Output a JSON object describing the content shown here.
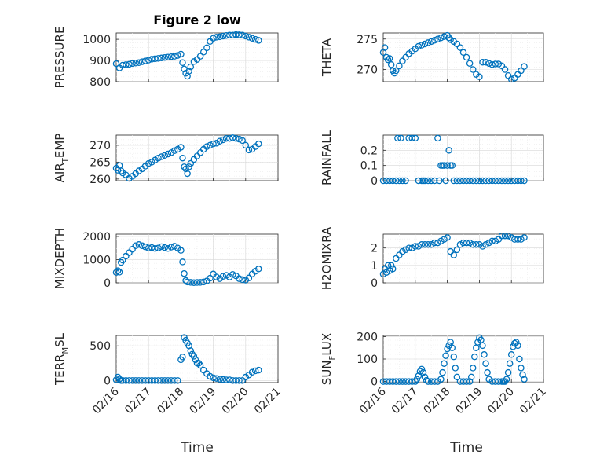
{
  "figure": {
    "title": "Figure 2 low",
    "xlabel": "Time"
  },
  "colors": {
    "marker": "#0072BD",
    "axes": "#262626"
  },
  "chart_data": [
    {
      "type": "scatter",
      "marker": "circle",
      "xlabel": "",
      "ylabel": "PRESSURE",
      "xlim": [
        0,
        5
      ],
      "ylim": [
        800,
        1030
      ],
      "yticks": [
        800,
        900,
        1000
      ],
      "xtick_labels": [],
      "grid": true,
      "minor_grid": true,
      "title": "Figure 2 low",
      "x": [
        0.0,
        0.1,
        0.2,
        0.3,
        0.4,
        0.5,
        0.6,
        0.7,
        0.8,
        0.9,
        1.0,
        1.1,
        1.2,
        1.3,
        1.4,
        1.5,
        1.6,
        1.7,
        1.8,
        1.9,
        2.0,
        2.05,
        2.1,
        2.15,
        2.2,
        2.25,
        2.3,
        2.4,
        2.5,
        2.6,
        2.7,
        2.8,
        2.9,
        3.0,
        3.1,
        3.2,
        3.3,
        3.4,
        3.5,
        3.6,
        3.7,
        3.8,
        3.9,
        4.0,
        4.1,
        4.2,
        4.3,
        4.4
      ],
      "y": [
        885,
        865,
        878,
        880,
        882,
        886,
        888,
        890,
        894,
        898,
        902,
        906,
        908,
        910,
        912,
        914,
        916,
        918,
        920,
        924,
        930,
        890,
        860,
        840,
        826,
        850,
        870,
        895,
        905,
        920,
        940,
        960,
        990,
        1005,
        1010,
        1012,
        1015,
        1018,
        1020,
        1020,
        1022,
        1021,
        1020,
        1015,
        1010,
        1005,
        1000,
        995
      ]
    },
    {
      "type": "scatter",
      "marker": "circle",
      "xlabel": "",
      "ylabel": "THETA",
      "xlim": [
        0,
        5
      ],
      "ylim": [
        268,
        276
      ],
      "yticks": [
        270,
        275
      ],
      "xtick_labels": [],
      "grid": true,
      "minor_grid": true,
      "x": [
        0.0,
        0.05,
        0.1,
        0.15,
        0.2,
        0.25,
        0.3,
        0.35,
        0.4,
        0.5,
        0.6,
        0.7,
        0.8,
        0.9,
        1.0,
        1.1,
        1.2,
        1.3,
        1.4,
        1.5,
        1.6,
        1.7,
        1.8,
        1.9,
        2.0,
        2.05,
        2.1,
        2.2,
        2.3,
        2.4,
        2.5,
        2.6,
        2.7,
        2.8,
        2.9,
        3.0,
        3.1,
        3.2,
        3.3,
        3.4,
        3.5,
        3.6,
        3.7,
        3.8,
        3.9,
        4.0,
        4.1,
        4.2,
        4.3,
        4.4
      ],
      "y": [
        272.8,
        273.6,
        272.0,
        271.6,
        271.8,
        270.8,
        269.8,
        269.4,
        269.8,
        270.6,
        271.4,
        272.0,
        272.6,
        273.0,
        273.4,
        273.8,
        274.0,
        274.2,
        274.4,
        274.6,
        274.8,
        275.0,
        275.2,
        275.4,
        275.6,
        275.2,
        274.9,
        274.6,
        274.2,
        273.6,
        272.8,
        272.0,
        271.0,
        270.0,
        269.2,
        268.8,
        271.2,
        271.2,
        271.0,
        270.8,
        270.9,
        270.9,
        270.6,
        270.0,
        269.0,
        268.4,
        268.6,
        269.2,
        269.8,
        270.5
      ]
    },
    {
      "type": "scatter",
      "marker": "circle",
      "xlabel": "",
      "ylabel": "AIR_TEMP",
      "xlim": [
        0,
        5
      ],
      "ylim": [
        259.5,
        273
      ],
      "yticks": [
        260,
        265,
        270
      ],
      "xtick_labels": [],
      "grid": true,
      "minor_grid": true,
      "x": [
        0.0,
        0.05,
        0.1,
        0.15,
        0.2,
        0.3,
        0.4,
        0.5,
        0.6,
        0.7,
        0.8,
        0.9,
        1.0,
        1.1,
        1.2,
        1.3,
        1.4,
        1.5,
        1.6,
        1.7,
        1.8,
        1.9,
        2.0,
        2.05,
        2.1,
        2.15,
        2.2,
        2.25,
        2.3,
        2.4,
        2.5,
        2.6,
        2.7,
        2.8,
        2.9,
        3.0,
        3.1,
        3.2,
        3.3,
        3.4,
        3.5,
        3.6,
        3.7,
        3.8,
        3.9,
        4.0,
        4.1,
        4.2,
        4.3,
        4.4
      ],
      "y": [
        263.2,
        262.6,
        264.0,
        262.4,
        261.8,
        261.2,
        260.2,
        260.8,
        261.6,
        262.4,
        263.0,
        263.8,
        264.6,
        265.0,
        265.6,
        266.2,
        266.6,
        267.0,
        267.4,
        267.8,
        268.4,
        268.8,
        269.4,
        266.2,
        263.6,
        263.0,
        261.6,
        263.6,
        264.6,
        265.8,
        266.8,
        267.8,
        268.8,
        269.6,
        270.0,
        270.4,
        270.6,
        271.2,
        271.6,
        272.0,
        272.0,
        272.2,
        272.0,
        271.8,
        271.4,
        270.0,
        268.6,
        268.8,
        269.6,
        270.4
      ]
    },
    {
      "type": "scatter",
      "marker": "circle",
      "xlabel": "",
      "ylabel": "RAINFALL",
      "xlim": [
        0,
        5
      ],
      "ylim": [
        0,
        0.3
      ],
      "yticks": [
        0,
        0.1,
        0.2
      ],
      "xtick_labels": [],
      "grid": true,
      "minor_grid": true,
      "x": [
        0.0,
        0.1,
        0.2,
        0.3,
        0.4,
        0.45,
        0.5,
        0.55,
        0.6,
        0.7,
        0.8,
        0.9,
        1.0,
        1.1,
        1.2,
        1.25,
        1.3,
        1.4,
        1.5,
        1.6,
        1.7,
        1.75,
        1.8,
        1.85,
        1.9,
        1.95,
        2.0,
        2.05,
        2.1,
        2.15,
        2.2,
        2.3,
        2.4,
        2.5,
        2.6,
        2.7,
        2.8,
        2.9,
        3.0,
        3.1,
        3.2,
        3.3,
        3.4,
        3.5,
        3.6,
        3.7,
        3.8,
        3.9,
        4.0,
        4.1,
        4.2,
        4.3,
        4.4
      ],
      "y": [
        0,
        0,
        0,
        0,
        0,
        0.28,
        0,
        0.28,
        0,
        0,
        0.28,
        0.28,
        0.28,
        0,
        0,
        0,
        0,
        0,
        0,
        0,
        0.28,
        0,
        0.1,
        0.1,
        0.1,
        0,
        0.1,
        0.2,
        0.1,
        0.1,
        0,
        0,
        0,
        0,
        0,
        0,
        0,
        0,
        0,
        0,
        0,
        0,
        0,
        0,
        0,
        0,
        0,
        0,
        0,
        0,
        0,
        0,
        0
      ]
    },
    {
      "type": "scatter",
      "marker": "circle",
      "xlabel": "",
      "ylabel": "MIXDEPTH",
      "xlim": [
        0,
        5
      ],
      "ylim": [
        0,
        2100
      ],
      "yticks": [
        0,
        1000,
        2000
      ],
      "xtick_labels": [],
      "grid": true,
      "minor_grid": true,
      "x": [
        0.0,
        0.05,
        0.1,
        0.15,
        0.2,
        0.3,
        0.4,
        0.5,
        0.6,
        0.7,
        0.8,
        0.9,
        1.0,
        1.1,
        1.2,
        1.3,
        1.4,
        1.5,
        1.6,
        1.7,
        1.8,
        1.9,
        2.0,
        2.05,
        2.1,
        2.15,
        2.2,
        2.3,
        2.4,
        2.5,
        2.6,
        2.7,
        2.8,
        2.9,
        3.0,
        3.1,
        3.2,
        3.3,
        3.4,
        3.5,
        3.6,
        3.7,
        3.8,
        3.9,
        4.0,
        4.1,
        4.2,
        4.3,
        4.4
      ],
      "y": [
        450,
        520,
        460,
        880,
        980,
        1150,
        1300,
        1450,
        1600,
        1650,
        1600,
        1550,
        1500,
        1520,
        1480,
        1500,
        1560,
        1520,
        1480,
        1540,
        1580,
        1500,
        1400,
        900,
        400,
        100,
        40,
        20,
        10,
        15,
        20,
        40,
        80,
        200,
        380,
        250,
        180,
        280,
        320,
        250,
        360,
        300,
        180,
        140,
        120,
        210,
        380,
        500,
        600
      ]
    },
    {
      "type": "scatter",
      "marker": "circle",
      "xlabel": "",
      "ylabel": "H2OMIXRA",
      "xlim": [
        0,
        5
      ],
      "ylim": [
        0,
        2.8
      ],
      "yticks": [
        0,
        1,
        2
      ],
      "xtick_labels": [],
      "grid": true,
      "minor_grid": true,
      "x": [
        0.0,
        0.05,
        0.1,
        0.15,
        0.2,
        0.25,
        0.3,
        0.4,
        0.5,
        0.6,
        0.7,
        0.8,
        0.9,
        1.0,
        1.1,
        1.2,
        1.3,
        1.4,
        1.5,
        1.6,
        1.7,
        1.8,
        1.9,
        2.0,
        2.1,
        2.2,
        2.3,
        2.4,
        2.5,
        2.6,
        2.7,
        2.8,
        2.9,
        3.0,
        3.1,
        3.2,
        3.3,
        3.4,
        3.5,
        3.6,
        3.7,
        3.8,
        3.9,
        4.0,
        4.1,
        4.2,
        4.3,
        4.4
      ],
      "y": [
        0.5,
        0.8,
        0.6,
        1.0,
        0.7,
        1.0,
        0.8,
        1.4,
        1.6,
        1.8,
        1.9,
        2.0,
        2.0,
        2.1,
        2.1,
        2.2,
        2.2,
        2.2,
        2.2,
        2.3,
        2.3,
        2.4,
        2.5,
        2.6,
        1.8,
        1.6,
        1.9,
        2.2,
        2.3,
        2.3,
        2.3,
        2.2,
        2.2,
        2.2,
        2.1,
        2.2,
        2.3,
        2.4,
        2.4,
        2.5,
        2.7,
        2.7,
        2.7,
        2.6,
        2.5,
        2.5,
        2.5,
        2.6
      ]
    },
    {
      "type": "scatter",
      "marker": "circle",
      "xlabel": "Time",
      "ylabel": "TERR_MSL",
      "xlim": [
        0,
        5
      ],
      "ylim": [
        -30,
        650
      ],
      "yticks": [
        0,
        500
      ],
      "xtick_values": [
        0,
        1,
        2,
        3,
        4,
        5
      ],
      "xtick_labels": [
        "02/16",
        "02/17",
        "02/18",
        "02/19",
        "02/20",
        "02/21"
      ],
      "grid": true,
      "minor_grid": true,
      "x": [
        0.0,
        0.05,
        0.1,
        0.15,
        0.2,
        0.3,
        0.4,
        0.5,
        0.6,
        0.7,
        0.8,
        0.9,
        1.0,
        1.1,
        1.2,
        1.3,
        1.4,
        1.5,
        1.6,
        1.7,
        1.8,
        1.9,
        2.0,
        2.05,
        2.1,
        2.15,
        2.2,
        2.25,
        2.3,
        2.35,
        2.4,
        2.45,
        2.5,
        2.55,
        2.6,
        2.7,
        2.8,
        2.9,
        3.0,
        3.1,
        3.2,
        3.3,
        3.4,
        3.5,
        3.6,
        3.7,
        3.8,
        3.9,
        4.0,
        4.1,
        4.2,
        4.3,
        4.4
      ],
      "y": [
        10,
        50,
        20,
        0,
        0,
        0,
        0,
        0,
        0,
        0,
        0,
        0,
        0,
        0,
        0,
        0,
        0,
        0,
        0,
        0,
        0,
        0,
        300,
        340,
        620,
        580,
        540,
        500,
        430,
        380,
        350,
        300,
        250,
        250,
        220,
        150,
        100,
        60,
        40,
        30,
        20,
        15,
        10,
        10,
        0,
        0,
        0,
        0,
        50,
        80,
        120,
        140,
        150
      ]
    },
    {
      "type": "scatter",
      "marker": "circle",
      "xlabel": "Time",
      "ylabel": "SUN_FLUX",
      "xlim": [
        0,
        5
      ],
      "ylim": [
        -5,
        205
      ],
      "yticks": [
        0,
        100,
        200
      ],
      "xtick_values": [
        0,
        1,
        2,
        3,
        4,
        5
      ],
      "xtick_labels": [
        "02/16",
        "02/17",
        "02/18",
        "02/19",
        "02/20",
        "02/21"
      ],
      "grid": true,
      "minor_grid": true,
      "x": [
        0.0,
        0.1,
        0.2,
        0.3,
        0.4,
        0.5,
        0.6,
        0.7,
        0.8,
        0.9,
        1.0,
        1.05,
        1.1,
        1.15,
        1.2,
        1.25,
        1.3,
        1.35,
        1.4,
        1.5,
        1.6,
        1.7,
        1.8,
        1.85,
        1.9,
        1.95,
        2.0,
        2.05,
        2.1,
        2.15,
        2.2,
        2.25,
        2.3,
        2.4,
        2.5,
        2.6,
        2.7,
        2.75,
        2.8,
        2.85,
        2.9,
        2.95,
        3.0,
        3.05,
        3.1,
        3.15,
        3.2,
        3.25,
        3.3,
        3.4,
        3.5,
        3.6,
        3.7,
        3.75,
        3.8,
        3.85,
        3.9,
        3.95,
        4.0,
        4.05,
        4.1,
        4.15,
        4.2,
        4.25,
        4.3,
        4.35,
        4.4
      ],
      "y": [
        0,
        0,
        0,
        0,
        0,
        0,
        0,
        0,
        0,
        0,
        0,
        10,
        25,
        45,
        55,
        40,
        20,
        5,
        0,
        0,
        0,
        0,
        10,
        40,
        80,
        115,
        145,
        160,
        175,
        150,
        110,
        60,
        20,
        0,
        0,
        0,
        0,
        20,
        60,
        110,
        150,
        175,
        195,
        185,
        160,
        120,
        80,
        40,
        10,
        0,
        0,
        0,
        0,
        0,
        0,
        10,
        40,
        80,
        120,
        155,
        170,
        175,
        160,
        100,
        60,
        30,
        10
      ]
    }
  ]
}
